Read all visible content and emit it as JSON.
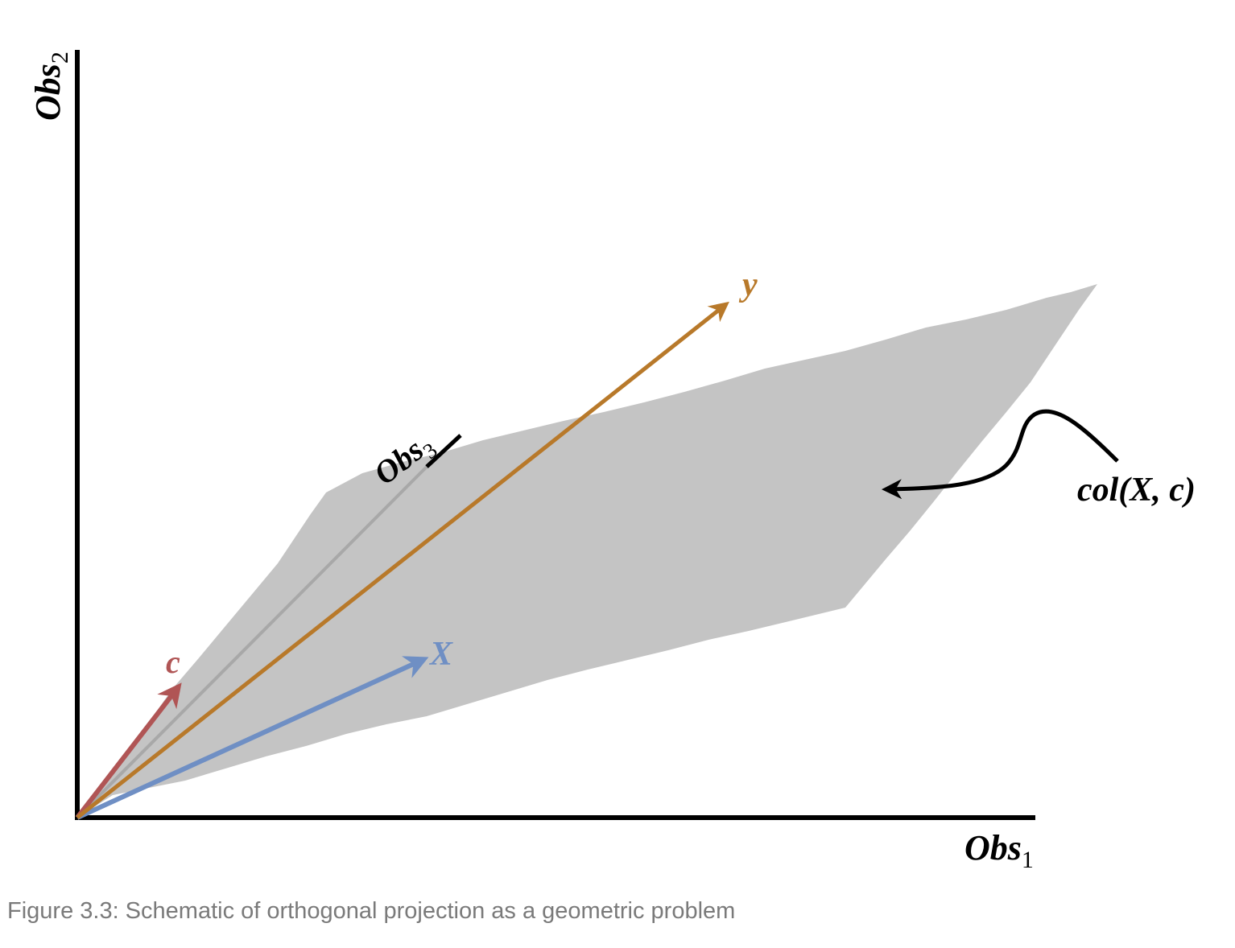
{
  "figure": {
    "axes": {
      "obs1": {
        "base": "Obs",
        "sub": "1"
      },
      "obs2": {
        "base": "Obs",
        "sub": "2"
      },
      "obs3": {
        "base": "Obs",
        "sub": "3"
      }
    },
    "vectors": {
      "c": {
        "label": "c",
        "color": "#b05555"
      },
      "X": {
        "label": "X",
        "color": "#6f8fc4"
      },
      "y": {
        "label": "y",
        "color": "#b8792a"
      }
    },
    "plane": {
      "label": "col(X, c)",
      "color": "#c4c4c4"
    },
    "caption": "Figure 3.3: Schematic of orthogonal projection as a geometric problem"
  }
}
